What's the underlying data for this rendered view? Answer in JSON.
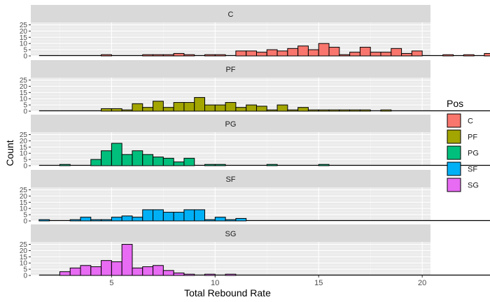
{
  "chart_data": {
    "type": "bar",
    "xlabel": "Total Rebound Rate",
    "ylabel": "Count",
    "x_ticks": [
      5,
      10,
      15,
      20
    ],
    "y_ticks": [
      0,
      5,
      10,
      15,
      20,
      25
    ],
    "xlim": [
      1.1,
      20.4
    ],
    "ylim": [
      0,
      27
    ],
    "bin_start": 1.5,
    "bin_width": 0.5,
    "grid": true,
    "legend": {
      "title": "Pos",
      "position": "right",
      "entries": [
        "C",
        "PF",
        "PG",
        "SF",
        "SG"
      ]
    },
    "panels": [
      {
        "name": "C",
        "color": "#F8766D",
        "values": [
          0,
          0,
          0,
          0,
          0,
          0,
          1,
          0,
          0,
          0,
          1,
          1,
          1,
          2,
          1,
          0,
          1,
          1,
          0,
          4,
          4,
          3,
          5,
          4,
          6,
          8,
          5,
          10,
          7,
          1,
          3,
          7,
          3,
          3,
          6,
          2,
          4,
          0,
          0,
          1,
          0,
          1,
          0,
          2
        ]
      },
      {
        "name": "PF",
        "color": "#A3A500",
        "values": [
          0,
          0,
          0,
          0,
          0,
          0,
          2,
          2,
          1,
          6,
          3,
          8,
          3,
          7,
          7,
          11,
          5,
          5,
          7,
          3,
          5,
          4,
          1,
          5,
          1,
          3,
          1,
          1,
          1,
          1,
          1,
          1,
          0,
          1,
          0,
          0,
          0,
          0,
          0,
          0,
          0,
          0,
          0,
          0
        ]
      },
      {
        "name": "PG",
        "color": "#00BF7D",
        "values": [
          0,
          0,
          1,
          0,
          0,
          5,
          12,
          18,
          9,
          12,
          9,
          7,
          6,
          3,
          6,
          0,
          1,
          1,
          0,
          0,
          0,
          0,
          1,
          0,
          0,
          0,
          0,
          1,
          0,
          0,
          0,
          0,
          0,
          0,
          0,
          0,
          0,
          0,
          0,
          0,
          0,
          0,
          0,
          0
        ]
      },
      {
        "name": "SF",
        "color": "#00B0F6",
        "values": [
          1,
          0,
          0,
          1,
          3,
          1,
          1,
          3,
          4,
          3,
          9,
          9,
          7,
          7,
          9,
          9,
          1,
          3,
          1,
          2,
          0,
          0,
          0,
          0,
          0,
          0,
          0,
          0,
          0,
          0,
          0,
          0,
          0,
          0,
          0,
          0,
          0,
          0,
          0,
          0,
          0,
          0,
          0,
          0
        ]
      },
      {
        "name": "SG",
        "color": "#E76BF3",
        "values": [
          0,
          0,
          3,
          6,
          8,
          7,
          12,
          11,
          25,
          6,
          7,
          8,
          4,
          2,
          1,
          0,
          1,
          0,
          1,
          0,
          0,
          0,
          0,
          0,
          0,
          0,
          0,
          0,
          0,
          0,
          0,
          0,
          0,
          0,
          0,
          0,
          0,
          0,
          0,
          0,
          0,
          0,
          0,
          0
        ]
      }
    ]
  }
}
